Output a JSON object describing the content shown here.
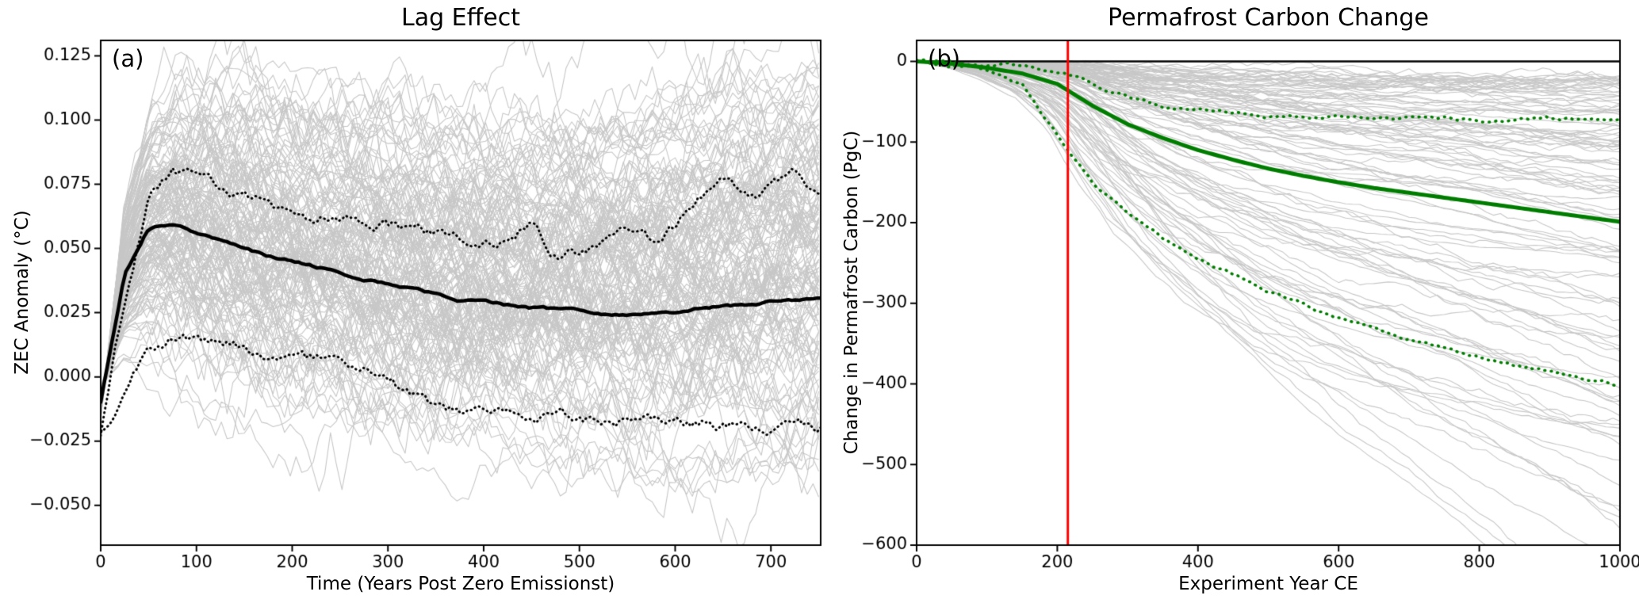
{
  "figure": {
    "background": "#ffffff"
  },
  "chart_data": [
    {
      "id": "lag_effect",
      "type": "line",
      "panel_label": "(a)",
      "title": "Lag Effect",
      "xlabel": "Time (Years Post Zero Emissionst)",
      "ylabel": "ZEC Anomaly (°C)",
      "xlim": [
        0,
        752
      ],
      "ylim": [
        -0.0655,
        0.131
      ],
      "xticks": [
        0,
        100,
        200,
        300,
        400,
        500,
        600,
        700
      ],
      "yticks": [
        -0.05,
        -0.025,
        0.0,
        0.025,
        0.05,
        0.075,
        0.1,
        0.125
      ],
      "ytick_decimals": 3,
      "grid": false,
      "legend_position": "none",
      "ensemble": {
        "color": "#c7c7c7",
        "approx_count": 150,
        "description": "individual ensemble member traces (gray), spanning roughly -0.055 to 0.125 °C"
      },
      "series": [
        {
          "name": "ensemble_mean",
          "style": "solid",
          "color": "#000000",
          "width": 4.5,
          "jitter": 0.0004,
          "x": [
            0,
            25,
            50,
            75,
            100,
            125,
            150,
            175,
            200,
            225,
            250,
            275,
            300,
            325,
            350,
            375,
            400,
            425,
            450,
            475,
            500,
            525,
            550,
            575,
            600,
            625,
            650,
            675,
            700,
            725,
            750
          ],
          "y": [
            -0.01,
            0.04,
            0.058,
            0.06,
            0.056,
            0.053,
            0.05,
            0.047,
            0.045,
            0.043,
            0.041,
            0.038,
            0.036,
            0.034,
            0.032,
            0.03,
            0.029,
            0.028,
            0.027,
            0.026,
            0.026,
            0.025,
            0.025,
            0.026,
            0.026,
            0.027,
            0.028,
            0.028,
            0.029,
            0.03,
            0.03
          ]
        },
        {
          "name": "upper_dotted_bound",
          "style": "dotted",
          "color": "#000000",
          "width": 3,
          "jitter": 0.0018,
          "x": [
            0,
            25,
            50,
            75,
            100,
            125,
            150,
            175,
            200,
            225,
            250,
            275,
            300,
            325,
            350,
            375,
            400,
            425,
            450,
            475,
            500,
            525,
            550,
            575,
            600,
            625,
            650,
            675,
            700,
            725,
            750
          ],
          "y": [
            -0.022,
            0.03,
            0.07,
            0.081,
            0.077,
            0.073,
            0.07,
            0.067,
            0.064,
            0.061,
            0.062,
            0.06,
            0.059,
            0.057,
            0.055,
            0.053,
            0.05,
            0.054,
            0.061,
            0.048,
            0.049,
            0.053,
            0.056,
            0.052,
            0.058,
            0.07,
            0.076,
            0.068,
            0.074,
            0.078,
            0.07
          ]
        },
        {
          "name": "lower_dotted_bound",
          "style": "dotted",
          "color": "#000000",
          "width": 3,
          "jitter": 0.0018,
          "x": [
            0,
            25,
            50,
            75,
            100,
            125,
            150,
            175,
            200,
            225,
            250,
            275,
            300,
            325,
            350,
            375,
            400,
            425,
            450,
            475,
            500,
            525,
            550,
            575,
            600,
            625,
            650,
            675,
            700,
            725,
            750
          ],
          "y": [
            -0.023,
            -0.005,
            0.012,
            0.016,
            0.014,
            0.013,
            0.011,
            0.009,
            0.007,
            0.006,
            0.004,
            0.002,
            -0.002,
            -0.008,
            -0.013,
            -0.014,
            -0.014,
            -0.015,
            -0.015,
            -0.016,
            -0.017,
            -0.016,
            -0.017,
            -0.018,
            -0.019,
            -0.018,
            -0.019,
            -0.02,
            -0.02,
            -0.019,
            -0.02
          ]
        }
      ]
    },
    {
      "id": "permafrost_carbon",
      "type": "line",
      "panel_label": "(b)",
      "title": "Permafrost Carbon Change",
      "xlabel": "Experiment Year CE",
      "ylabel": "Change in Permafrost Carbon (PgC)",
      "xlim": [
        0,
        1000
      ],
      "ylim": [
        -600,
        26
      ],
      "xticks": [
        0,
        200,
        400,
        600,
        800,
        1000
      ],
      "yticks": [
        0,
        -100,
        -200,
        -300,
        -400,
        -500,
        -600
      ],
      "grid": false,
      "legend_position": "none",
      "ensemble": {
        "color": "#c7c7c7",
        "approx_count": 115,
        "description": "individual ensemble member traces (gray), ranging from near 0 down past -600 PgC"
      },
      "annotations": {
        "hline": {
          "y": 0,
          "color": "#000000"
        },
        "vline": {
          "x": 215,
          "color": "#ff0000"
        }
      },
      "series": [
        {
          "name": "ensemble_mean",
          "style": "solid",
          "color": "#007d00",
          "width": 5,
          "jitter": 0,
          "x": [
            0,
            50,
            100,
            150,
            200,
            250,
            300,
            350,
            400,
            450,
            500,
            550,
            600,
            650,
            700,
            750,
            800,
            850,
            900,
            950,
            1000
          ],
          "y": [
            0,
            -3,
            -8,
            -15,
            -28,
            -55,
            -78,
            -95,
            -110,
            -122,
            -133,
            -142,
            -150,
            -157,
            -163,
            -169,
            -175,
            -181,
            -187,
            -193,
            -199
          ]
        },
        {
          "name": "upper_dotted_bound",
          "style": "dotted",
          "color": "#007d00",
          "width": 3.6,
          "jitter": 1.6,
          "x": [
            0,
            50,
            100,
            150,
            200,
            250,
            300,
            350,
            400,
            450,
            500,
            550,
            600,
            650,
            700,
            750,
            800,
            850,
            900,
            950,
            1000
          ],
          "y": [
            0,
            -2,
            -4,
            -7,
            -12,
            -28,
            -45,
            -55,
            -60,
            -64,
            -66,
            -68,
            -69,
            -70,
            -70,
            -71,
            -71,
            -72,
            -72,
            -72,
            -73
          ]
        },
        {
          "name": "lower_dotted_bound",
          "style": "dotted",
          "color": "#007d00",
          "width": 3.6,
          "jitter": 1.6,
          "x": [
            0,
            50,
            100,
            150,
            200,
            250,
            300,
            350,
            400,
            450,
            500,
            550,
            600,
            650,
            700,
            750,
            800,
            850,
            900,
            950,
            1000
          ],
          "y": [
            0,
            -5,
            -12,
            -30,
            -90,
            -150,
            -190,
            -218,
            -243,
            -265,
            -285,
            -302,
            -318,
            -330,
            -342,
            -355,
            -365,
            -375,
            -385,
            -393,
            -400
          ]
        }
      ]
    }
  ]
}
